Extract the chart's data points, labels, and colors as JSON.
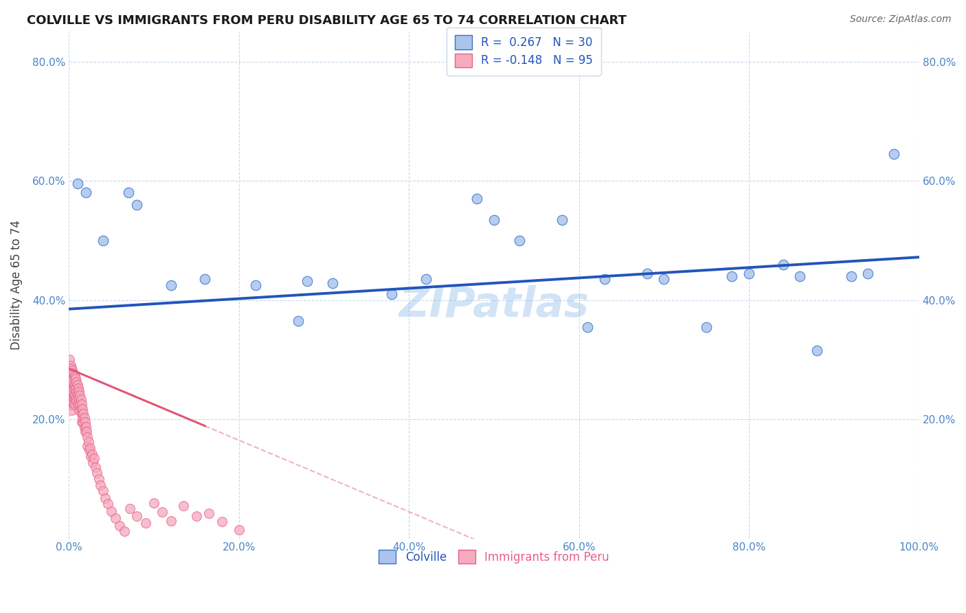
{
  "title": "COLVILLE VS IMMIGRANTS FROM PERU DISABILITY AGE 65 TO 74 CORRELATION CHART",
  "source": "Source: ZipAtlas.com",
  "ylabel": "Disability Age 65 to 74",
  "xlabel": "",
  "xlim": [
    0,
    1.0
  ],
  "ylim": [
    0,
    0.85
  ],
  "xticks": [
    0.0,
    0.2,
    0.4,
    0.6,
    0.8,
    1.0
  ],
  "yticks": [
    0.2,
    0.4,
    0.6,
    0.8
  ],
  "xticklabels": [
    "0.0%",
    "20.0%",
    "40.0%",
    "60.0%",
    "80.0%",
    "100.0%"
  ],
  "yticklabels": [
    "20.0%",
    "40.0%",
    "60.0%",
    "80.0%"
  ],
  "colville_R": 0.267,
  "colville_N": 30,
  "peru_R": -0.148,
  "peru_N": 95,
  "colville_color": "#aac4ee",
  "peru_color": "#f5aabe",
  "colville_edge_color": "#3a72c4",
  "peru_edge_color": "#e8608a",
  "colville_line_color": "#2255bb",
  "peru_line_color": "#e05575",
  "colville_x": [
    0.01,
    0.02,
    0.07,
    0.08,
    0.04,
    0.12,
    0.16,
    0.22,
    0.27,
    0.28,
    0.31,
    0.38,
    0.42,
    0.48,
    0.5,
    0.53,
    0.58,
    0.61,
    0.63,
    0.68,
    0.7,
    0.75,
    0.78,
    0.8,
    0.84,
    0.86,
    0.88,
    0.92,
    0.94,
    0.97
  ],
  "colville_y": [
    0.595,
    0.58,
    0.58,
    0.56,
    0.5,
    0.425,
    0.435,
    0.425,
    0.365,
    0.432,
    0.428,
    0.41,
    0.435,
    0.57,
    0.535,
    0.5,
    0.535,
    0.355,
    0.435,
    0.445,
    0.435,
    0.355,
    0.44,
    0.445,
    0.46,
    0.44,
    0.315,
    0.44,
    0.445,
    0.645
  ],
  "peru_x": [
    0.0,
    0.0,
    0.001,
    0.001,
    0.001,
    0.001,
    0.002,
    0.002,
    0.002,
    0.002,
    0.002,
    0.003,
    0.003,
    0.003,
    0.003,
    0.003,
    0.003,
    0.004,
    0.004,
    0.004,
    0.004,
    0.005,
    0.005,
    0.005,
    0.005,
    0.006,
    0.006,
    0.006,
    0.006,
    0.007,
    0.007,
    0.007,
    0.007,
    0.008,
    0.008,
    0.008,
    0.009,
    0.009,
    0.009,
    0.01,
    0.01,
    0.01,
    0.011,
    0.011,
    0.012,
    0.012,
    0.012,
    0.013,
    0.013,
    0.014,
    0.014,
    0.015,
    0.015,
    0.015,
    0.016,
    0.016,
    0.017,
    0.017,
    0.018,
    0.018,
    0.019,
    0.019,
    0.02,
    0.021,
    0.022,
    0.022,
    0.023,
    0.024,
    0.025,
    0.026,
    0.027,
    0.028,
    0.03,
    0.031,
    0.033,
    0.035,
    0.037,
    0.04,
    0.043,
    0.046,
    0.05,
    0.055,
    0.06,
    0.065,
    0.072,
    0.08,
    0.09,
    0.1,
    0.11,
    0.12,
    0.135,
    0.15,
    0.165,
    0.18,
    0.2
  ],
  "peru_y": [
    0.285,
    0.265,
    0.3,
    0.27,
    0.255,
    0.235,
    0.29,
    0.272,
    0.255,
    0.242,
    0.225,
    0.285,
    0.268,
    0.25,
    0.235,
    0.225,
    0.215,
    0.282,
    0.265,
    0.248,
    0.23,
    0.278,
    0.26,
    0.244,
    0.228,
    0.275,
    0.258,
    0.242,
    0.228,
    0.272,
    0.256,
    0.24,
    0.225,
    0.268,
    0.252,
    0.235,
    0.262,
    0.246,
    0.23,
    0.258,
    0.242,
    0.226,
    0.252,
    0.236,
    0.246,
    0.228,
    0.215,
    0.24,
    0.224,
    0.234,
    0.218,
    0.226,
    0.21,
    0.196,
    0.218,
    0.202,
    0.21,
    0.195,
    0.202,
    0.186,
    0.196,
    0.18,
    0.188,
    0.18,
    0.17,
    0.155,
    0.162,
    0.148,
    0.152,
    0.138,
    0.142,
    0.128,
    0.135,
    0.12,
    0.11,
    0.1,
    0.09,
    0.08,
    0.068,
    0.058,
    0.046,
    0.034,
    0.022,
    0.012,
    0.05,
    0.038,
    0.026,
    0.06,
    0.045,
    0.03,
    0.055,
    0.038,
    0.042,
    0.028,
    0.015
  ],
  "watermark": "ZIPatlas",
  "background_color": "#ffffff",
  "grid_color": "#c8d8ec",
  "tick_color": "#4a85c8",
  "legend_border_color": "#c8d8ec"
}
